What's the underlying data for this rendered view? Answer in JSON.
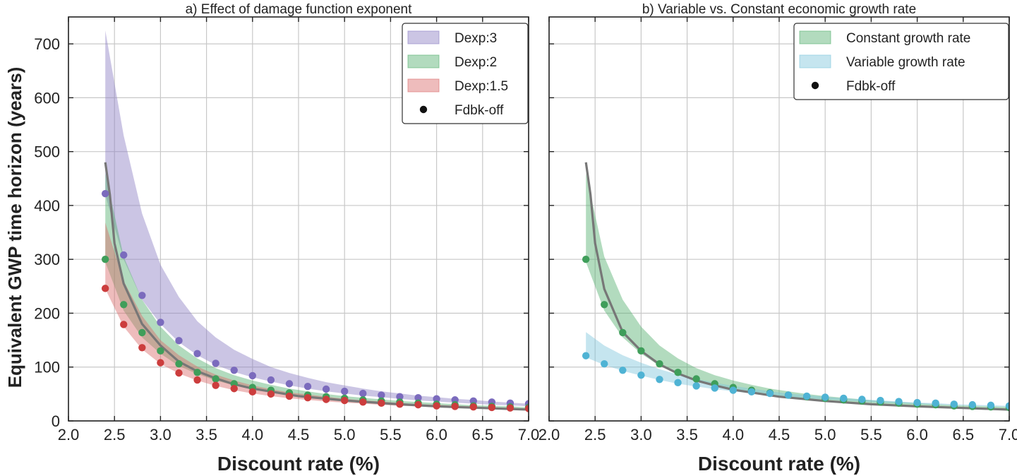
{
  "figure": {
    "ylabel": "Equivalent GWP time horizon (years)"
  },
  "chart_data": [
    {
      "type": "line",
      "title": "a) Effect of damage function exponent",
      "xlabel": "Discount rate (%)",
      "ylabel": "Equivalent GWP time horizon (years)",
      "xlim": [
        2.0,
        7.0
      ],
      "ylim": [
        0,
        750
      ],
      "xticks": [
        "2.0",
        "2.5",
        "3.0",
        "3.5",
        "4.0",
        "4.5",
        "5.0",
        "5.5",
        "6.0",
        "6.5",
        "7.0"
      ],
      "yticks": [
        "0",
        "100",
        "200",
        "300",
        "400",
        "500",
        "600",
        "700"
      ],
      "grid": true,
      "legend_position": "top-right",
      "legend": [
        "Dexp:3",
        "Dexp:2",
        "Dexp:1.5",
        "Fdbk-off"
      ],
      "x": [
        2.4,
        2.6,
        2.8,
        3.0,
        3.2,
        3.4,
        3.6,
        3.8,
        4.0,
        4.2,
        4.4,
        4.6,
        4.8,
        5.0,
        5.2,
        5.4,
        5.6,
        5.8,
        6.0,
        6.2,
        6.4,
        6.6,
        6.8,
        7.0
      ],
      "bands": [
        {
          "name": "Dexp:3",
          "color": "#8c7fc4",
          "upper": [
            725,
            530,
            385,
            290,
            230,
            185,
            155,
            132,
            115,
            100,
            89,
            80,
            72,
            66,
            60,
            55,
            51,
            47,
            44,
            41,
            39,
            36,
            34,
            32
          ],
          "lower": [
            420,
            300,
            225,
            180,
            146,
            122,
            104,
            91,
            81,
            73,
            66,
            60,
            55,
            51,
            47,
            44,
            41,
            38,
            36,
            34,
            32,
            30,
            29,
            27
          ]
        },
        {
          "name": "Dexp:2",
          "color": "#55b06e",
          "upper": [
            460,
            305,
            225,
            175,
            140,
            116,
            98,
            85,
            75,
            67,
            60,
            55,
            50,
            46,
            43,
            40,
            37,
            35,
            33,
            31,
            29,
            28,
            27,
            25
          ],
          "lower": [
            295,
            205,
            155,
            125,
            102,
            87,
            75,
            66,
            59,
            53,
            48,
            44,
            41,
            38,
            35,
            33,
            31,
            29,
            28,
            26,
            25,
            24,
            23,
            22
          ]
        },
        {
          "name": "Dexp:1.5",
          "color": "#d96b6b",
          "upper": [
            368,
            260,
            195,
            150,
            122,
            101,
            86,
            75,
            66,
            59,
            53,
            49,
            45,
            41,
            38,
            36,
            33,
            31,
            30,
            28,
            27,
            25,
            24,
            23
          ],
          "lower": [
            245,
            175,
            133,
            106,
            88,
            75,
            65,
            57,
            51,
            46,
            42,
            39,
            36,
            34,
            32,
            30,
            28,
            27,
            25,
            24,
            23,
            22,
            21,
            20
          ]
        }
      ],
      "dots": [
        {
          "name": "Dexp:3",
          "color": "#7b6bbd",
          "values": [
            422,
            308,
            233,
            183,
            149,
            125,
            107,
            94,
            84,
            76,
            69,
            64,
            59,
            55,
            51,
            48,
            45,
            43,
            41,
            39,
            37,
            35,
            33,
            32
          ]
        },
        {
          "name": "Dexp:2",
          "color": "#3f9e5a",
          "values": [
            300,
            216,
            164,
            130,
            106,
            90,
            78,
            69,
            62,
            57,
            52,
            48,
            45,
            42,
            39,
            37,
            35,
            33,
            31,
            30,
            28,
            27,
            26,
            25
          ]
        },
        {
          "name": "Dexp:1.5",
          "color": "#cc3d3d",
          "values": [
            246,
            179,
            136,
            108,
            89,
            76,
            66,
            60,
            54,
            50,
            46,
            43,
            40,
            38,
            35,
            33,
            31,
            30,
            28,
            27,
            26,
            25,
            24,
            23
          ]
        }
      ],
      "line": {
        "color": "#777777",
        "x": [
          2.4,
          2.45,
          2.5,
          2.6,
          2.8,
          3.0,
          3.2,
          3.4,
          3.6,
          3.8,
          4.0,
          4.5,
          5.0,
          5.5,
          6.0,
          6.5,
          7.0
        ],
        "y": [
          480,
          420,
          330,
          255,
          180,
          140,
          110,
          92,
          79,
          68,
          60,
          46,
          38,
          32,
          27,
          24,
          21
        ]
      }
    },
    {
      "type": "line",
      "title": "b) Variable vs. Constant economic growth rate",
      "xlabel": "Discount rate (%)",
      "xlim": [
        2.0,
        7.0
      ],
      "ylim": [
        0,
        750
      ],
      "xticks": [
        "2.0",
        "2.5",
        "3.0",
        "3.5",
        "4.0",
        "4.5",
        "5.0",
        "5.5",
        "6.0",
        "6.5",
        "7.0"
      ],
      "grid": true,
      "legend_position": "top-right",
      "legend": [
        "Constant growth rate",
        "Variable growth rate",
        "Fdbk-off"
      ],
      "x": [
        2.4,
        2.6,
        2.8,
        3.0,
        3.2,
        3.4,
        3.6,
        3.8,
        4.0,
        4.2,
        4.4,
        4.6,
        4.8,
        5.0,
        5.2,
        5.4,
        5.6,
        5.8,
        6.0,
        6.2,
        6.4,
        6.6,
        6.8,
        7.0
      ],
      "bands": [
        {
          "name": "Constant growth rate",
          "color": "#55b06e",
          "upper": [
            460,
            305,
            225,
            175,
            140,
            116,
            98,
            85,
            75,
            67,
            60,
            55,
            50,
            46,
            43,
            40,
            37,
            35,
            33,
            31,
            29,
            28,
            27,
            26
          ],
          "lower": [
            295,
            205,
            155,
            125,
            102,
            87,
            75,
            66,
            59,
            53,
            48,
            44,
            41,
            38,
            35,
            33,
            31,
            29,
            28,
            26,
            25,
            24,
            23,
            22
          ]
        },
        {
          "name": "Variable growth rate",
          "color": "#7fc6dc",
          "upper": [
            165,
            140,
            122,
            108,
            96,
            86,
            78,
            71,
            65,
            60,
            55,
            51,
            48,
            45,
            42,
            40,
            38,
            36,
            34,
            33,
            31,
            30,
            29,
            28
          ],
          "lower": [
            118,
            104,
            93,
            84,
            76,
            69,
            64,
            59,
            55,
            51,
            48,
            45,
            42,
            40,
            38,
            36,
            34,
            33,
            31,
            30,
            29,
            28,
            27,
            26
          ]
        }
      ],
      "dots": [
        {
          "name": "Constant growth rate",
          "color": "#3f9e5a",
          "values": [
            300,
            216,
            164,
            130,
            106,
            90,
            78,
            69,
            62,
            57,
            52,
            48,
            45,
            42,
            39,
            37,
            35,
            33,
            31,
            30,
            28,
            27,
            26,
            25
          ]
        },
        {
          "name": "Variable growth rate",
          "color": "#4fb3d4",
          "values": [
            121,
            106,
            94,
            85,
            77,
            71,
            65,
            61,
            57,
            54,
            51,
            48,
            46,
            44,
            42,
            40,
            38,
            36,
            34,
            33,
            31,
            30,
            29,
            28
          ]
        }
      ],
      "line": {
        "color": "#777777",
        "x": [
          2.4,
          2.45,
          2.5,
          2.6,
          2.8,
          3.0,
          3.2,
          3.4,
          3.6,
          3.8,
          4.0,
          4.5,
          5.0,
          5.5,
          6.0,
          6.5,
          7.0
        ],
        "y": [
          480,
          420,
          330,
          245,
          165,
          130,
          105,
          88,
          75,
          66,
          58,
          45,
          37,
          31,
          27,
          24,
          21
        ]
      }
    }
  ]
}
